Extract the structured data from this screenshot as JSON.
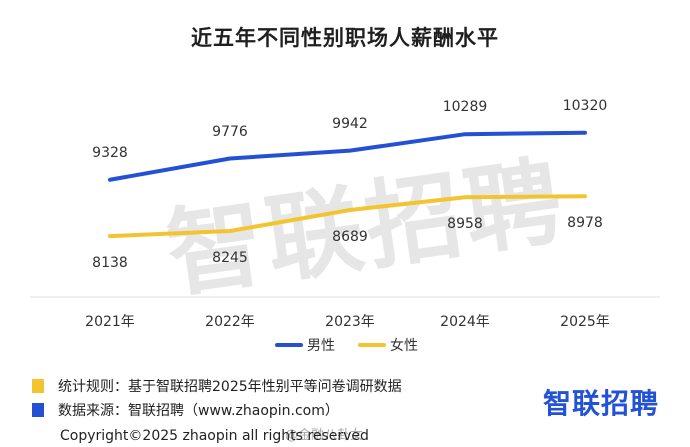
{
  "chart_data": {
    "type": "line",
    "title": "近五年不同性别职场人薪酬水平",
    "categories": [
      "2021年",
      "2022年",
      "2023年",
      "2024年",
      "2025年"
    ],
    "x_tick_labels": [
      "2021年",
      "2022年",
      "2023年",
      "2024年",
      "2025年"
    ],
    "series": [
      {
        "name": "男性",
        "color": "#2451d3",
        "values": [
          9328,
          9776,
          9942,
          10289,
          10320
        ],
        "value_labels": [
          "9328",
          "9776",
          "9942",
          "10289",
          "10320"
        ]
      },
      {
        "name": "女性",
        "color": "#f2c530",
        "values": [
          8138,
          8245,
          8689,
          8958,
          8978
        ],
        "value_labels": [
          "8138",
          "8245",
          "8689",
          "8958",
          "8978"
        ]
      }
    ],
    "legend_position": "bottom-center",
    "grid": false
  },
  "watermark": "智联招聘",
  "notes": [
    {
      "text": "统计规则：基于智联招聘2025年性别平等问卷调研数据",
      "color": "#f2c530"
    },
    {
      "text": "数据来源：智联招聘（www.zhaopin.com）",
      "color": "#2451d3"
    }
  ],
  "brand_logo": "智联招聘",
  "copyright": "Copyright©2025 zhaopin all rights reserved",
  "weibo_watermark": "@金融八卦女"
}
